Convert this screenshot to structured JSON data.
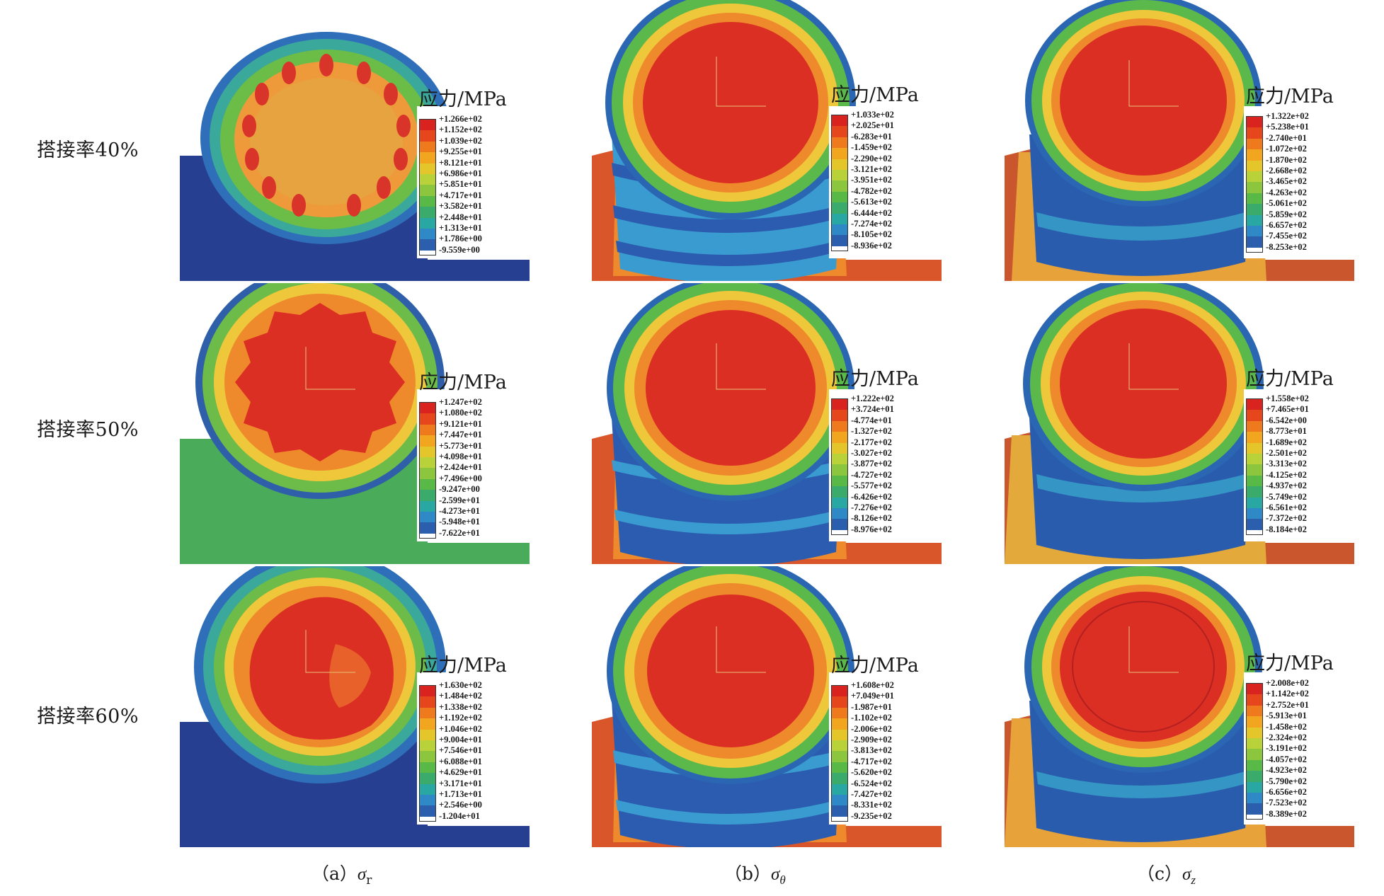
{
  "rows": [
    {
      "label": "搭接率40%"
    },
    {
      "label": "搭接率50%"
    },
    {
      "label": "搭接率60%"
    }
  ],
  "legend_title": "应力/MPa",
  "colormap": [
    "#d9231f",
    "#e6461c",
    "#ef7a1d",
    "#f2a51f",
    "#e4c52a",
    "#b9d23a",
    "#8cc63f",
    "#58b947",
    "#3aab6a",
    "#29a8a3",
    "#2f89c7",
    "#2b5fae",
    "#22469a"
  ],
  "panels": [
    {
      "ticks": [
        "+1.266e+02",
        "+1.152e+02",
        "+1.039e+02",
        "+9.255e+01",
        "+8.121e+01",
        "+6.986e+01",
        "+5.851e+01",
        "+4.717e+01",
        "+3.582e+01",
        "+2.448e+01",
        "+1.313e+01",
        "+1.786e+00",
        "-9.559e+00"
      ]
    },
    {
      "ticks": [
        "+1.033e+02",
        "+2.025e+01",
        "-6.283e+01",
        "-1.459e+02",
        "-2.290e+02",
        "-3.121e+02",
        "-3.951e+02",
        "-4.782e+02",
        "-5.613e+02",
        "-6.444e+02",
        "-7.274e+02",
        "-8.105e+02",
        "-8.936e+02"
      ]
    },
    {
      "ticks": [
        "+1.322e+02",
        "+5.238e+01",
        "-2.740e+01",
        "-1.072e+02",
        "-1.870e+02",
        "-2.668e+02",
        "-3.465e+02",
        "-4.263e+02",
        "-5.061e+02",
        "-5.859e+02",
        "-6.657e+02",
        "-7.455e+02",
        "-8.253e+02"
      ]
    },
    {
      "ticks": [
        "+1.247e+02",
        "+1.080e+02",
        "+9.121e+01",
        "+7.447e+01",
        "+5.773e+01",
        "+4.098e+01",
        "+2.424e+01",
        "+7.496e+00",
        "-9.247e+00",
        "-2.599e+01",
        "-4.273e+01",
        "-5.948e+01",
        "-7.622e+01"
      ]
    },
    {
      "ticks": [
        "+1.222e+02",
        "+3.724e+01",
        "-4.774e+01",
        "-1.327e+02",
        "-2.177e+02",
        "-3.027e+02",
        "-3.877e+02",
        "-4.727e+02",
        "-5.577e+02",
        "-6.426e+02",
        "-7.276e+02",
        "-8.126e+02",
        "-8.976e+02"
      ]
    },
    {
      "ticks": [
        "+1.558e+02",
        "+7.465e+01",
        "-6.542e+00",
        "-8.773e+01",
        "-1.689e+02",
        "-2.501e+02",
        "-3.313e+02",
        "-4.125e+02",
        "-4.937e+02",
        "-5.749e+02",
        "-6.561e+02",
        "-7.372e+02",
        "-8.184e+02"
      ]
    },
    {
      "ticks": [
        "+1.630e+02",
        "+1.484e+02",
        "+1.338e+02",
        "+1.192e+02",
        "+1.046e+02",
        "+9.004e+01",
        "+7.546e+01",
        "+6.088e+01",
        "+4.629e+01",
        "+3.171e+01",
        "+1.713e+01",
        "+2.546e+00",
        "-1.204e+01"
      ]
    },
    {
      "ticks": [
        "+1.608e+02",
        "+7.049e+01",
        "-1.987e+01",
        "-1.102e+02",
        "-2.006e+02",
        "-2.909e+02",
        "-3.813e+02",
        "-4.717e+02",
        "-5.620e+02",
        "-6.524e+02",
        "-7.427e+02",
        "-8.331e+02",
        "-9.235e+02"
      ]
    },
    {
      "ticks": [
        "+2.008e+02",
        "+1.142e+02",
        "+2.752e+01",
        "-5.913e+01",
        "-1.458e+02",
        "-2.324e+02",
        "-3.191e+02",
        "-4.057e+02",
        "-4.923e+02",
        "-5.790e+02",
        "-6.656e+02",
        "-7.523e+02",
        "-8.389e+02"
      ]
    }
  ],
  "captions": [
    {
      "prefix": "（a）",
      "symbol": "σ",
      "sub": "r"
    },
    {
      "prefix": "（b）",
      "symbol": "σ",
      "sub": "θ"
    },
    {
      "prefix": "（c）",
      "symbol": "σ",
      "sub": "z"
    }
  ]
}
